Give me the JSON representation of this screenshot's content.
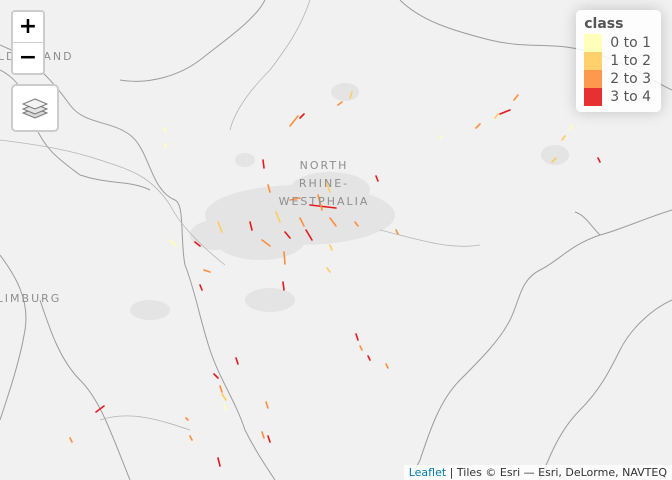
{
  "map": {
    "labels": {
      "region_line1": "NORTH",
      "region_line2": "RHINE-",
      "region_line3": "WESTPHALIA",
      "gelderland": "GELDERLAND",
      "limburg": "LIMBURG"
    },
    "colors": {
      "background": "#f1f1f1",
      "boundary": "#9e9e9e",
      "urban": "#e3e3e3"
    }
  },
  "controls": {
    "zoom_in": "+",
    "zoom_out": "−",
    "layers_icon": "layers-icon"
  },
  "legend": {
    "title": "class",
    "items": [
      {
        "label": "0 to 1",
        "color": "#ffffb2"
      },
      {
        "label": "1 to 2",
        "color": "#fecc5c"
      },
      {
        "label": "2 to 3",
        "color": "#fd8d3c"
      },
      {
        "label": "3 to 4",
        "color": "#e31a1c"
      }
    ]
  },
  "attribution": {
    "leaflet": "Leaflet",
    "separator": " | ",
    "tiles": "Tiles © Esri — Esri, DeLorme, NAVTEQ"
  }
}
